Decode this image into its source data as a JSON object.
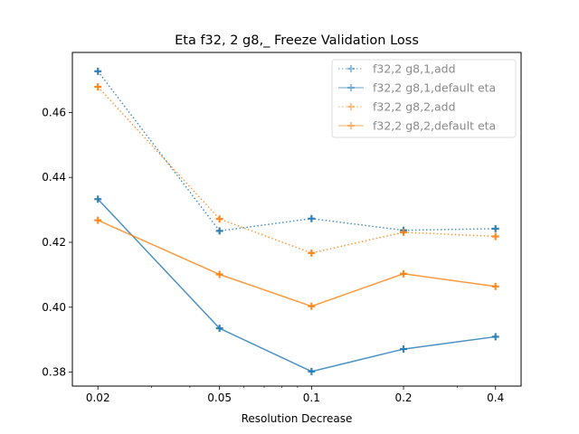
{
  "chart_data": {
    "type": "line",
    "title": "Eta f32, 2 g8,_ Freeze Validation Loss",
    "xlabel": "Resolution Decrease",
    "ylabel": "",
    "x_scale": "log",
    "x": [
      0.02,
      0.05,
      0.1,
      0.2,
      0.4
    ],
    "x_tick_labels": [
      "0.02",
      "0.05",
      "0.1",
      "0.2",
      "0.4"
    ],
    "xlim": [
      0.0165,
      0.485
    ],
    "ylim": [
      0.3757,
      0.4785
    ],
    "y_ticks": [
      0.38,
      0.4,
      0.42,
      0.44,
      0.46
    ],
    "y_tick_labels": [
      "0.38",
      "0.40",
      "0.42",
      "0.44",
      "0.46"
    ],
    "grid": false,
    "legend_position": "top-right",
    "series": [
      {
        "name": "f32,2 g8,1,add",
        "color": "#1f77b4",
        "linestyle": "dotted",
        "values": [
          0.4727,
          0.4235,
          0.4273,
          0.4237,
          0.4242
        ]
      },
      {
        "name": "f32,2 g8,1,default eta",
        "color": "#1f77b4",
        "linestyle": "solid",
        "values": [
          0.4333,
          0.3935,
          0.3802,
          0.3871,
          0.3909
        ]
      },
      {
        "name": "f32,2 g8,2,add",
        "color": "#ff7f0e",
        "linestyle": "dotted",
        "values": [
          0.4679,
          0.4272,
          0.4167,
          0.4231,
          0.4218
        ]
      },
      {
        "name": "f32,2 g8,2,default eta",
        "color": "#ff7f0e",
        "linestyle": "solid",
        "values": [
          0.4268,
          0.4101,
          0.4003,
          0.4103,
          0.4064
        ]
      }
    ]
  }
}
